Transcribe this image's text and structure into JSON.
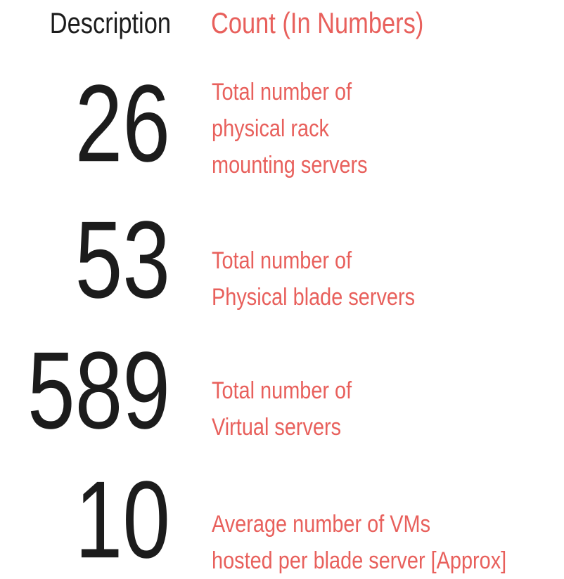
{
  "header": {
    "description": "Description",
    "count": "Count (In Numbers)"
  },
  "rows": [
    {
      "number": "26",
      "lines": [
        "Total number of",
        "physical rack",
        "mounting servers"
      ]
    },
    {
      "number": "53",
      "lines": [
        "Total number of",
        "Physical blade servers"
      ]
    },
    {
      "number": "589",
      "lines": [
        "Total number of",
        "Virtual servers"
      ]
    },
    {
      "number": "10",
      "lines": [
        "Average number of VMs",
        "hosted per blade server [Approx]"
      ]
    }
  ]
}
